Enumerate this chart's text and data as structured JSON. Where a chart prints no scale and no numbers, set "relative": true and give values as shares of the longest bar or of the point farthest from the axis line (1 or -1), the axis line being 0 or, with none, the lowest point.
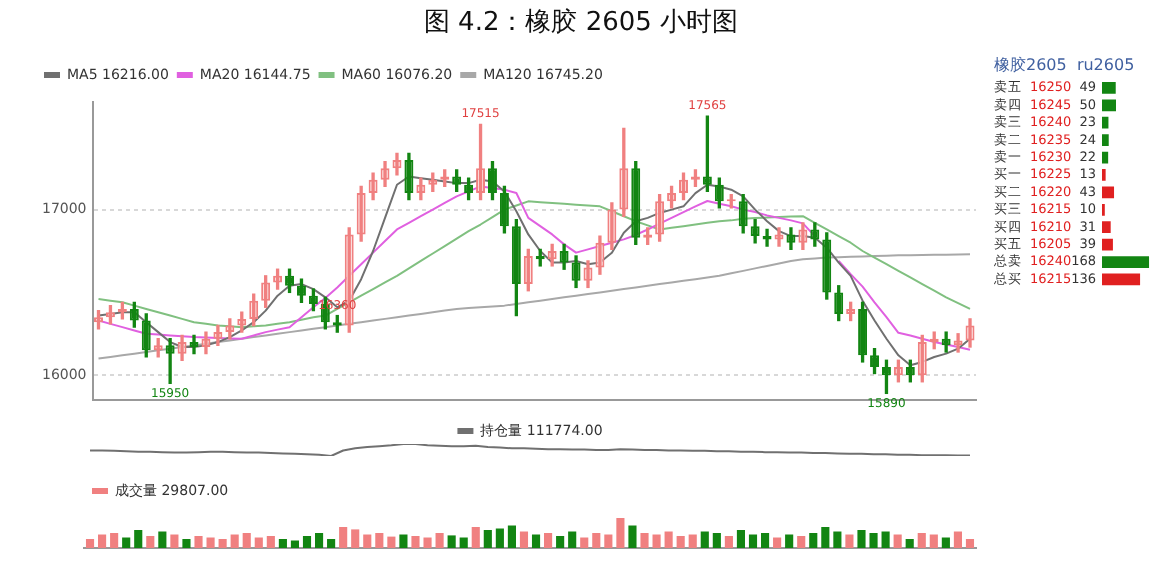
{
  "chart_data": [
    {
      "type": "candlestick",
      "title": "图 4.2：橡胶 2605 小时图",
      "categories": [
        null,
        null,
        null,
        null,
        null,
        null,
        null,
        null,
        null,
        null,
        null,
        null,
        null,
        null,
        null,
        null,
        null,
        null,
        null,
        null,
        null,
        null,
        null,
        null,
        null,
        null,
        null,
        null,
        null,
        null,
        null,
        null,
        null,
        null,
        null,
        null,
        null,
        null,
        null,
        null,
        null,
        null,
        null,
        null,
        null,
        null,
        null,
        null,
        null,
        null,
        null,
        null,
        null,
        null,
        null,
        null,
        null,
        null,
        null,
        null,
        null,
        null,
        null,
        null,
        null,
        null,
        null,
        null,
        null,
        null,
        null,
        null,
        null,
        null
      ],
      "ohlc": [
        [
          16320,
          16390,
          16280,
          16350
        ],
        [
          16350,
          16420,
          16310,
          16380
        ],
        [
          16380,
          16440,
          16340,
          16400
        ],
        [
          16400,
          16440,
          16290,
          16330
        ],
        [
          16330,
          16370,
          16110,
          16150
        ],
        [
          16150,
          16220,
          16110,
          16180
        ],
        [
          16180,
          16220,
          15950,
          16130
        ],
        [
          16130,
          16240,
          16090,
          16200
        ],
        [
          16200,
          16240,
          16130,
          16170
        ],
        [
          16170,
          16260,
          16130,
          16220
        ],
        [
          16220,
          16300,
          16180,
          16260
        ],
        [
          16260,
          16340,
          16220,
          16300
        ],
        [
          16300,
          16380,
          16260,
          16340
        ],
        [
          16340,
          16490,
          16300,
          16450
        ],
        [
          16450,
          16600,
          16410,
          16560
        ],
        [
          16560,
          16640,
          16520,
          16600
        ],
        [
          16600,
          16640,
          16500,
          16540
        ],
        [
          16540,
          16580,
          16440,
          16480
        ],
        [
          16480,
          16520,
          16390,
          16430
        ],
        [
          16430,
          16470,
          16280,
          16320
        ],
        [
          16320,
          16360,
          16260,
          16300
        ],
        [
          16300,
          16890,
          16260,
          16850
        ],
        [
          16850,
          17140,
          16810,
          17100
        ],
        [
          17100,
          17220,
          17060,
          17180
        ],
        [
          17180,
          17290,
          17140,
          17250
        ],
        [
          17250,
          17340,
          17210,
          17300
        ],
        [
          17300,
          17340,
          17060,
          17100
        ],
        [
          17100,
          17190,
          17060,
          17150
        ],
        [
          17150,
          17220,
          17110,
          17180
        ],
        [
          17180,
          17240,
          17140,
          17200
        ],
        [
          17200,
          17240,
          17110,
          17150
        ],
        [
          17150,
          17190,
          17060,
          17100
        ],
        [
          17100,
          17515,
          17060,
          17250
        ],
        [
          17250,
          17290,
          17060,
          17100
        ],
        [
          17100,
          17140,
          16860,
          16900
        ],
        [
          16900,
          16940,
          16360,
          16550
        ],
        [
          16550,
          16760,
          16510,
          16720
        ],
        [
          16720,
          16760,
          16660,
          16700
        ],
        [
          16700,
          16790,
          16660,
          16750
        ],
        [
          16750,
          16790,
          16640,
          16680
        ],
        [
          16680,
          16720,
          16530,
          16570
        ],
        [
          16570,
          16690,
          16530,
          16650
        ],
        [
          16650,
          16840,
          16610,
          16800
        ],
        [
          16800,
          17040,
          16760,
          17000
        ],
        [
          17000,
          17490,
          16960,
          17250
        ],
        [
          17250,
          17290,
          16790,
          16830
        ],
        [
          16830,
          16890,
          16790,
          16850
        ],
        [
          16850,
          17090,
          16810,
          17050
        ],
        [
          17050,
          17140,
          17010,
          17100
        ],
        [
          17100,
          17220,
          17060,
          17180
        ],
        [
          17180,
          17240,
          17140,
          17200
        ],
        [
          17200,
          17565,
          17110,
          17150
        ],
        [
          17150,
          17190,
          17010,
          17050
        ],
        [
          17050,
          17090,
          17010,
          17050
        ],
        [
          17050,
          17090,
          16860,
          16900
        ],
        [
          16900,
          16940,
          16800,
          16840
        ],
        [
          16840,
          16880,
          16780,
          16820
        ],
        [
          16820,
          16890,
          16780,
          16850
        ],
        [
          16850,
          16890,
          16760,
          16800
        ],
        [
          16800,
          16920,
          16760,
          16880
        ],
        [
          16880,
          16920,
          16780,
          16820
        ],
        [
          16820,
          16860,
          16460,
          16500
        ],
        [
          16500,
          16540,
          16330,
          16370
        ],
        [
          16370,
          16440,
          16330,
          16400
        ],
        [
          16400,
          16440,
          16080,
          16120
        ],
        [
          16120,
          16160,
          16010,
          16050
        ],
        [
          16050,
          16090,
          15890,
          16000
        ],
        [
          16000,
          16090,
          15960,
          16050
        ],
        [
          16050,
          16090,
          15960,
          16000
        ],
        [
          16000,
          16240,
          15960,
          16200
        ],
        [
          16200,
          16260,
          16160,
          16220
        ],
        [
          16220,
          16260,
          16140,
          16180
        ],
        [
          16180,
          16250,
          16140,
          16210
        ],
        [
          16210,
          16340,
          16170,
          16300
        ]
      ],
      "series": [
        {
          "name": "MA5 16216.00",
          "type": "line",
          "color": "#707070",
          "values": [
            16360,
            16370,
            16380,
            16380,
            16320,
            16260,
            16200,
            16170,
            16170,
            16180,
            16200,
            16230,
            16270,
            16320,
            16390,
            16480,
            16540,
            16550,
            16520,
            16470,
            16410,
            16450,
            16580,
            16750,
            16950,
            17150,
            17200,
            17190,
            17180,
            17170,
            17160,
            17160,
            17180,
            17170,
            17110,
            16990,
            16850,
            16750,
            16680,
            16680,
            16690,
            16670,
            16680,
            16740,
            16860,
            16930,
            16950,
            16980,
            17000,
            17020,
            17100,
            17150,
            17140,
            17120,
            17080,
            17000,
            16930,
            16870,
            16840,
            16840,
            16830,
            16770,
            16680,
            16600,
            16450,
            16330,
            16220,
            16120,
            16060,
            16080,
            16110,
            16130,
            16160,
            16220
          ]
        },
        {
          "name": "MA20 16144.75",
          "type": "line",
          "color": "#e060e0",
          "values": [
            16330,
            16310,
            16290,
            16270,
            16250,
            16245,
            16240,
            16235,
            16230,
            16228,
            16225,
            16222,
            16220,
            16240,
            16260,
            16275,
            16290,
            16350,
            16410,
            16466,
            16530,
            16600,
            16670,
            16740,
            16810,
            16880,
            16920,
            16960,
            17000,
            17040,
            17080,
            17110,
            17140,
            17130,
            17120,
            17100,
            16950,
            16900,
            16850,
            16790,
            16740,
            16760,
            16780,
            16800,
            16820,
            16847,
            16880,
            16915,
            16950,
            16985,
            17020,
            17052,
            17035,
            17020,
            17000,
            16985,
            16965,
            16950,
            16935,
            16917,
            16840,
            null,
            16690,
            16610,
            16535,
            16440,
            16350,
            16256,
            16240,
            16220,
            16200,
            16185,
            16170,
            16153
          ]
        },
        {
          "name": "MA60 16076.20",
          "type": "line",
          "color": "#80c080",
          "values": [
            16460,
            16450,
            16440,
            16420,
            16400,
            16380,
            16360,
            16340,
            16320,
            16310,
            16300,
            16295,
            16290,
            16295,
            16300,
            16310,
            16320,
            16335,
            16350,
            16360,
            16400,
            16440,
            16480,
            16520,
            16560,
            16600,
            16645,
            16690,
            16735,
            16780,
            16825,
            16870,
            16910,
            16955,
            17000,
            17025,
            17050,
            17045,
            17040,
            17035,
            17030,
            17025,
            17020,
            16990,
            16960,
            16930,
            16905,
            16880,
            16890,
            16900,
            16910,
            16920,
            16930,
            16935,
            16945,
            16950,
            16952,
            16955,
            16958,
            16960,
            16920,
            16880,
            16840,
            16800,
            16750,
            16710,
            16670,
            16630,
            16590,
            16550,
            16510,
            16470,
            16435,
            16400
          ]
        },
        {
          "name": "MA120 16745.20",
          "type": "line",
          "color": "#a8a8a8",
          "values": [
            16100,
            16110,
            16120,
            16130,
            16140,
            16150,
            16160,
            16170,
            16180,
            16190,
            16200,
            16210,
            16220,
            16230,
            16240,
            16250,
            16260,
            16270,
            16280,
            16290,
            16300,
            16310,
            16320,
            16330,
            16340,
            16350,
            16360,
            16370,
            16380,
            16390,
            16400,
            16405,
            16410,
            16415,
            16420,
            16430,
            16440,
            16450,
            16460,
            16470,
            16480,
            16490,
            16500,
            16510,
            16520,
            16530,
            16540,
            16550,
            16560,
            16570,
            16580,
            16590,
            16600,
            16615,
            16630,
            16645,
            16660,
            16675,
            16690,
            16700,
            16705,
            16710,
            16712,
            16715,
            16717,
            16720,
            16722,
            16724,
            16725,
            16726,
            16727,
            16728,
            16729,
            16730
          ]
        }
      ],
      "ylim": [
        15850,
        17650
      ],
      "yticks": [
        16000,
        17000
      ],
      "grid": "y",
      "tick_labels": "y",
      "legend": "top left",
      "annotations": [
        {
          "text": "15950",
          "y": 15950
        },
        {
          "text": "17515",
          "y": 17515
        },
        {
          "text": "16360",
          "y": 16360
        },
        {
          "text": "17565",
          "y": 17565
        },
        {
          "text": "15890",
          "y": 15890
        }
      ]
    },
    {
      "type": "bar",
      "relative": true,
      "categories": [
        null,
        null,
        null,
        null,
        null,
        null,
        null,
        null,
        null,
        null,
        null,
        null,
        null,
        null,
        null,
        null,
        null,
        null,
        null,
        null,
        null,
        null,
        null,
        null,
        null,
        null,
        null,
        null,
        null,
        null,
        null,
        null,
        null,
        null,
        null,
        null,
        null,
        null,
        null,
        null,
        null,
        null,
        null,
        null,
        null,
        null,
        null,
        null,
        null,
        null,
        null,
        null,
        null,
        null,
        null,
        null,
        null,
        null,
        null,
        null,
        null,
        null,
        null,
        null,
        null,
        null,
        null,
        null,
        null,
        null,
        null,
        null,
        null,
        null
      ],
      "legend": "top left",
      "tick_labels": false,
      "series": [
        {
          "name": "成交量 29807.00",
          "type": "bar",
          "color": "#f08080",
          "values": [
            0.3,
            0.45,
            0.5,
            0.35,
            0.6,
            0.4,
            0.55,
            0.45,
            0.3,
            0.4,
            0.35,
            0.3,
            0.45,
            0.5,
            0.35,
            0.4,
            0.3,
            0.25,
            0.4,
            0.5,
            0.3,
            0.7,
            0.62,
            0.45,
            0.5,
            0.38,
            0.45,
            0.4,
            0.35,
            0.5,
            0.42,
            0.35,
            0.7,
            0.6,
            0.65,
            0.75,
            0.55,
            0.45,
            0.5,
            0.4,
            0.55,
            0.35,
            0.5,
            0.45,
            1.0,
            0.75,
            0.5,
            0.45,
            0.55,
            0.4,
            0.45,
            0.55,
            0.5,
            0.4,
            0.6,
            0.45,
            0.5,
            0.35,
            0.45,
            0.4,
            0.5,
            0.7,
            0.55,
            0.45,
            0.6,
            0.5,
            0.55,
            0.45,
            0.3,
            0.5,
            0.45,
            0.35,
            0.55,
            0.3
          ],
          "colors": [
            "#f08080",
            "#f08080",
            "#f08080",
            "#128512",
            "#128512",
            "#f08080",
            "#128512",
            "#f08080",
            "#128512",
            "#f08080",
            "#f08080",
            "#f08080",
            "#f08080",
            "#f08080",
            "#f08080",
            "#f08080",
            "#128512",
            "#128512",
            "#128512",
            "#128512",
            "#128512",
            "#f08080",
            "#f08080",
            "#f08080",
            "#f08080",
            "#f08080",
            "#128512",
            "#f08080",
            "#f08080",
            "#f08080",
            "#128512",
            "#128512",
            "#f08080",
            "#128512",
            "#128512",
            "#128512",
            "#f08080",
            "#128512",
            "#f08080",
            "#128512",
            "#128512",
            "#f08080",
            "#f08080",
            "#f08080",
            "#f08080",
            "#128512",
            "#f08080",
            "#f08080",
            "#f08080",
            "#f08080",
            "#f08080",
            "#128512",
            "#128512",
            "#f08080",
            "#128512",
            "#128512",
            "#128512",
            "#f08080",
            "#128512",
            "#f08080",
            "#128512",
            "#128512",
            "#128512",
            "#f08080",
            "#128512",
            "#128512",
            "#128512",
            "#f08080",
            "#128512",
            "#f08080",
            "#f08080",
            "#128512",
            "#f08080",
            "#f08080"
          ]
        }
      ]
    },
    {
      "type": "line",
      "relative": true,
      "categories": [
        null,
        null,
        null,
        null,
        null,
        null,
        null,
        null,
        null,
        null,
        null,
        null,
        null,
        null,
        null,
        null,
        null,
        null,
        null,
        null,
        null,
        null,
        null,
        null,
        null,
        null,
        null,
        null,
        null,
        null,
        null,
        null,
        null,
        null,
        null,
        null,
        null,
        null,
        null,
        null,
        null,
        null,
        null,
        null,
        null,
        null,
        null,
        null,
        null,
        null,
        null,
        null,
        null,
        null,
        null,
        null,
        null,
        null,
        null,
        null,
        null,
        null,
        null,
        null,
        null,
        null,
        null,
        null,
        null,
        null,
        null,
        null,
        null,
        null
      ],
      "legend": "top",
      "tick_labels": false,
      "series": [
        {
          "name": "持仓量 111774.00",
          "type": "line",
          "color": "#707070",
          "values": [
            0.46,
            0.46,
            0.43,
            0.39,
            0.36,
            0.36,
            0.32,
            0.29,
            0.29,
            0.32,
            0.36,
            0.36,
            0.32,
            0.29,
            0.29,
            0.25,
            0.21,
            0.18,
            0.14,
            0.11,
            0,
            0.46,
            0.64,
            0.75,
            0.82,
            0.89,
            1,
            1,
            0.89,
            0.86,
            0.82,
            0.82,
            0.86,
            0.75,
            0.71,
            0.64,
            0.64,
            0.61,
            0.57,
            0.57,
            0.54,
            0.54,
            0.5,
            0.5,
            0.57,
            0.54,
            0.5,
            0.5,
            0.46,
            0.46,
            0.43,
            0.43,
            0.39,
            0.39,
            0.36,
            0.36,
            0.32,
            0.32,
            0.29,
            0.29,
            0.25,
            0.25,
            0.21,
            0.18,
            0.18,
            0.14,
            0.14,
            0.11,
            0.11,
            0.07,
            0.07,
            0.07,
            0.04,
            0.04
          ]
        }
      ]
    },
    {
      "type": "bar",
      "orientation": "horizontal",
      "title": "橡胶2605  ru2605",
      "categories": [
        "卖五",
        "卖四",
        "卖三",
        "卖二",
        "卖一",
        "买一",
        "买二",
        "买三",
        "买四",
        "买五",
        "总卖",
        "总买"
      ],
      "values": [
        49,
        50,
        23,
        24,
        22,
        13,
        43,
        10,
        31,
        39,
        168,
        136
      ],
      "colors": [
        "#128512",
        "#128512",
        "#128512",
        "#128512",
        "#128512",
        "#e02020",
        "#e02020",
        "#e02020",
        "#e02020",
        "#e02020",
        "#128512",
        "#e02020"
      ],
      "data_labels": true,
      "annotations": [
        "16250",
        "16245",
        "16240",
        "16235",
        "16230",
        "16225",
        "16220",
        "16215",
        "16210",
        "16205",
        "16240",
        "16215"
      ]
    }
  ]
}
